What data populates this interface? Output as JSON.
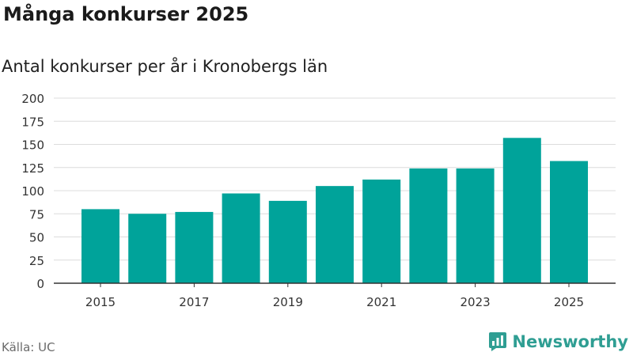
{
  "header": {
    "title": "Många konkurser 2025",
    "subtitle": "Antal konkurser per år i Kronobergs län"
  },
  "footer": {
    "source": "Källa: UC",
    "brand": "Newsworthy"
  },
  "colors": {
    "bar": "#00a39a",
    "grid": "#dcdcdc",
    "axis": "#333333",
    "brand": "#2f9e93"
  },
  "chart_data": {
    "type": "bar",
    "title": "Antal konkurser per år i Kronobergs län",
    "xlabel": "",
    "ylabel": "",
    "categories": [
      "2015",
      "2016",
      "2017",
      "2018",
      "2019",
      "2020",
      "2021",
      "2022",
      "2023",
      "2024",
      "2025"
    ],
    "values": [
      80,
      75,
      77,
      97,
      89,
      105,
      112,
      124,
      124,
      157,
      132
    ],
    "x_tick_labels": [
      "2015",
      "2017",
      "2019",
      "2021",
      "2023",
      "2025"
    ],
    "y_ticks": [
      0,
      25,
      50,
      75,
      100,
      125,
      150,
      175,
      200
    ],
    "ylim": [
      0,
      200
    ],
    "grid": true
  }
}
